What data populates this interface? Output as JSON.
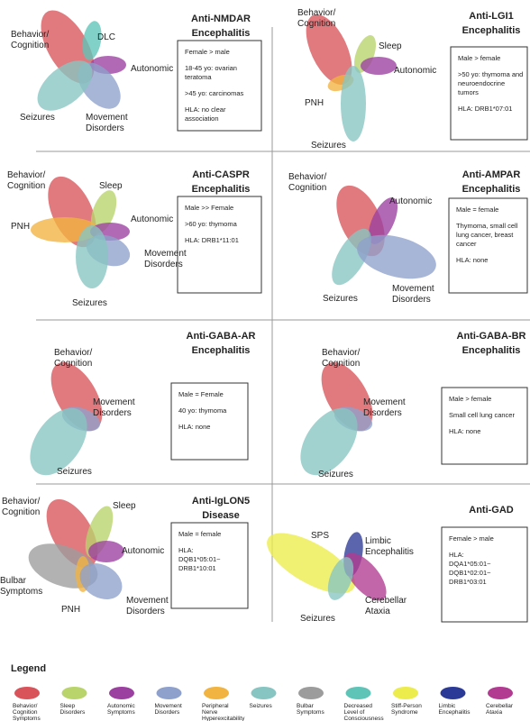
{
  "panels": [
    {
      "title": [
        "Anti-NMDAR",
        "Encephalitis"
      ],
      "labels": [
        [
          "Behavior/",
          "Cognition"
        ],
        [
          "DLC"
        ],
        [
          "Autonomic"
        ],
        [
          "Seizures"
        ],
        [
          "Movement",
          "Disorders"
        ]
      ],
      "info": [
        [
          "Female > male"
        ],
        [
          "18-45 yo: ovarian",
          "teratoma"
        ],
        [
          ">45 yo: carcinomas"
        ],
        [
          "HLA: no clear",
          "association"
        ]
      ]
    },
    {
      "title": [
        "Anti-LGI1",
        "Encephalitis"
      ],
      "labels": [
        [
          "Behavior/",
          "Cognition"
        ],
        [
          "Sleep"
        ],
        [
          "Autonomic"
        ],
        [
          "PNH"
        ],
        [
          "Seizures"
        ]
      ],
      "info": [
        [
          "Male > female"
        ],
        [
          ">50 yo: thymoma and",
          "neuroendocrine",
          "tumors"
        ],
        [
          "HLA: DRB1*07:01"
        ]
      ]
    },
    {
      "title": [
        "Anti-CASPR",
        "Encephalitis"
      ],
      "labels": [
        [
          "Behavior/",
          "Cognition"
        ],
        [
          "Sleep"
        ],
        [
          "PNH"
        ],
        [
          "Autonomic"
        ],
        [
          "Movement",
          "Disorders"
        ],
        [
          "Seizures"
        ]
      ],
      "info": [
        [
          "Male >> Female"
        ],
        [
          ">60 yo: thymoma"
        ],
        [
          "HLA: DRB1*11:01"
        ]
      ]
    },
    {
      "title": [
        "Anti-AMPAR",
        "Encephalitis"
      ],
      "labels": [
        [
          "Behavior/",
          "Cognition"
        ],
        [
          "Autonomic"
        ],
        [
          "Seizures"
        ],
        [
          "Movement",
          "Disorders"
        ]
      ],
      "info": [
        [
          "Male = female"
        ],
        [
          "Thymoma, small cell",
          "lung cancer, breast",
          "cancer"
        ],
        [
          "HLA: none"
        ]
      ]
    },
    {
      "title": [
        "Anti-GABA-AR",
        "Encephalitis"
      ],
      "labels": [
        [
          "Behavior/",
          "Cognition"
        ],
        [
          "Movement",
          "Disorders"
        ],
        [
          "Seizures"
        ]
      ],
      "info": [
        [
          "Male = Female"
        ],
        [
          "40 yo: thymoma"
        ],
        [
          "HLA: none"
        ]
      ]
    },
    {
      "title": [
        "Anti-GABA-BR",
        "Encephalitis"
      ],
      "labels": [
        [
          "Behavior/",
          "Cognition"
        ],
        [
          "Movement",
          "Disorders"
        ],
        [
          "Seizures"
        ]
      ],
      "info": [
        [
          "Male > female"
        ],
        [
          "Small cell lung cancer"
        ],
        [
          "HLA: none"
        ]
      ]
    },
    {
      "title": [
        "Anti-IgLON5",
        "Disease"
      ],
      "labels": [
        [
          "Behavior/",
          "Cognition"
        ],
        [
          "Sleep"
        ],
        [
          "Autonomic"
        ],
        [
          "Bulbar",
          "Symptoms"
        ],
        [
          "PNH"
        ],
        [
          "Movement",
          "Disorders"
        ]
      ],
      "info": [
        [
          "Male = female"
        ],
        [
          "HLA:",
          "DQB1*05:01~",
          "DRB1*10:01"
        ]
      ]
    },
    {
      "title": [
        "Anti-GAD"
      ],
      "labels": [
        [
          "SPS"
        ],
        [
          "Limbic",
          "Encephalitis"
        ],
        [
          "Cerebellar",
          "Ataxia"
        ],
        [
          "Seizures"
        ]
      ],
      "info": [
        [
          "Female > male"
        ],
        [
          "HLA:",
          "DQA1*05:01~",
          "DQB1*02:01~",
          "DRB1*03:01"
        ]
      ]
    }
  ],
  "legend": {
    "title": "Legend",
    "items": [
      [
        "Behavior/",
        "Cognition",
        "Symptoms"
      ],
      [
        "Sleep",
        "Disorders"
      ],
      [
        "Autonomic",
        "Symptoms"
      ],
      [
        "Movement",
        "Disorders"
      ],
      [
        "Peripheral",
        "Nerve",
        "Hyperexcitability"
      ],
      [
        "Seizures"
      ],
      [
        "Bulbar",
        "Symptoms"
      ],
      [
        "Decreased",
        "Level of",
        "Consciousness"
      ],
      [
        "Stiff-Person",
        "Syndrome"
      ],
      [
        "Limbic",
        "Encephalitis"
      ],
      [
        "Cerebellar",
        "Ataxia"
      ]
    ]
  }
}
